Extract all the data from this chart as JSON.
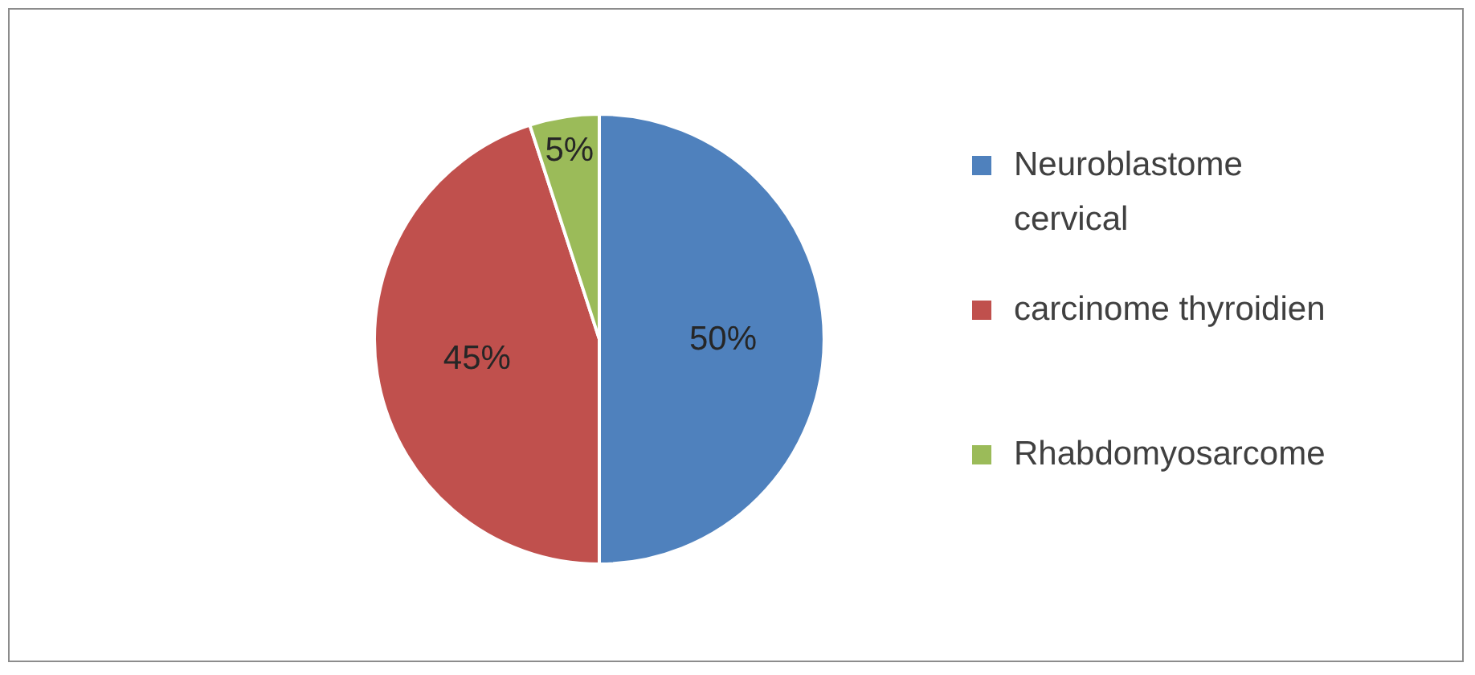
{
  "chart_data": {
    "type": "pie",
    "categories": [
      "Neuroblastome cervical",
      "carcinome thyroidien",
      "Rhabdomyosarcome"
    ],
    "values": [
      50,
      45,
      5
    ],
    "colors": [
      "#4f81bd",
      "#c0504d",
      "#9bbb59"
    ],
    "value_labels": [
      "50%",
      "45%",
      "5%"
    ],
    "legend": "right"
  }
}
